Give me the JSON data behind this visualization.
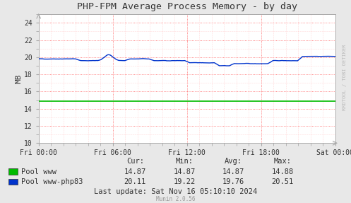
{
  "title": "PHP-FPM Average Process Memory - by day",
  "ylabel": "MB",
  "background_color": "#e8e8e8",
  "plot_bg_color": "#ffffff",
  "x_ticks_labels": [
    "Fri 00:00",
    "Fri 06:00",
    "Fri 12:00",
    "Fri 18:00",
    "Sat 00:00"
  ],
  "ylim": [
    10,
    25
  ],
  "yticks": [
    10,
    12,
    14,
    16,
    18,
    20,
    22,
    24
  ],
  "pool_www_value": 14.87,
  "pool_www_color": "#00bb00",
  "pool_php83_color": "#0033cc",
  "legend_items": [
    "Pool www",
    "Pool www-php83"
  ],
  "cur_www": "14.87",
  "min_www": "14.87",
  "avg_www": "14.87",
  "max_www": "14.88",
  "cur_php83": "20.11",
  "min_php83": "19.22",
  "avg_php83": "19.76",
  "max_php83": "20.51",
  "last_update": "Last update: Sat Nov 16 05:10:10 2024",
  "munin_version": "Munin 2.0.56",
  "rrdtool_label": "RRDTOOL / TOBI OETIKER",
  "title_fontsize": 9.5,
  "tick_fontsize": 7,
  "legend_fontsize": 7.5,
  "stats_fontsize": 7.5
}
